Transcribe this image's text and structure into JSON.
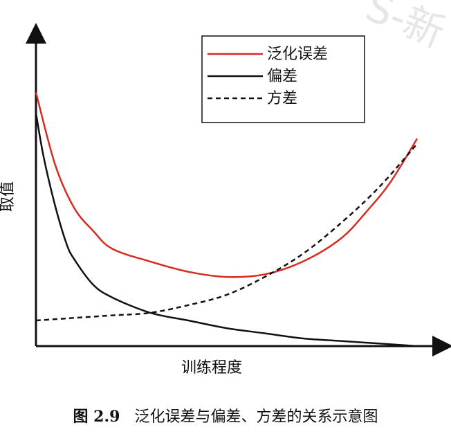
{
  "caption": {
    "number": "图 2.9",
    "text": "泛化误差与偏差、方差的关系示意图"
  },
  "watermark": "S-新",
  "chart_data": {
    "type": "line",
    "xlabel": "训练程度",
    "ylabel": "取值",
    "xlim": [
      0,
      1
    ],
    "ylim": [
      0,
      1
    ],
    "grid": false,
    "legend_position": "top-right",
    "series": [
      {
        "name": "泛化误差",
        "color": "#d62b1e",
        "style": "solid",
        "x": [
          0,
          0.05,
          0.1,
          0.15,
          0.2,
          0.3,
          0.4,
          0.5,
          0.6,
          0.7,
          0.8,
          0.87,
          0.93,
          1.0
        ],
        "y": [
          0.99,
          0.71,
          0.54,
          0.45,
          0.38,
          0.33,
          0.29,
          0.27,
          0.28,
          0.33,
          0.42,
          0.53,
          0.64,
          0.81
        ]
      },
      {
        "name": "偏差",
        "color": "#111111",
        "style": "solid",
        "x": [
          0,
          0.02,
          0.05,
          0.08,
          0.1,
          0.15,
          0.2,
          0.3,
          0.4,
          0.5,
          0.6,
          0.7,
          0.8,
          0.9,
          1.0
        ],
        "y": [
          0.91,
          0.74,
          0.55,
          0.4,
          0.34,
          0.24,
          0.19,
          0.13,
          0.1,
          0.07,
          0.05,
          0.03,
          0.02,
          0.01,
          0.0
        ]
      },
      {
        "name": "方差",
        "color": "#111111",
        "style": "dashed",
        "x": [
          0,
          0.1,
          0.2,
          0.3,
          0.4,
          0.5,
          0.6,
          0.7,
          0.8,
          0.9,
          1.0
        ],
        "y": [
          0.1,
          0.11,
          0.12,
          0.13,
          0.16,
          0.2,
          0.27,
          0.36,
          0.48,
          0.62,
          0.79
        ]
      }
    ]
  }
}
